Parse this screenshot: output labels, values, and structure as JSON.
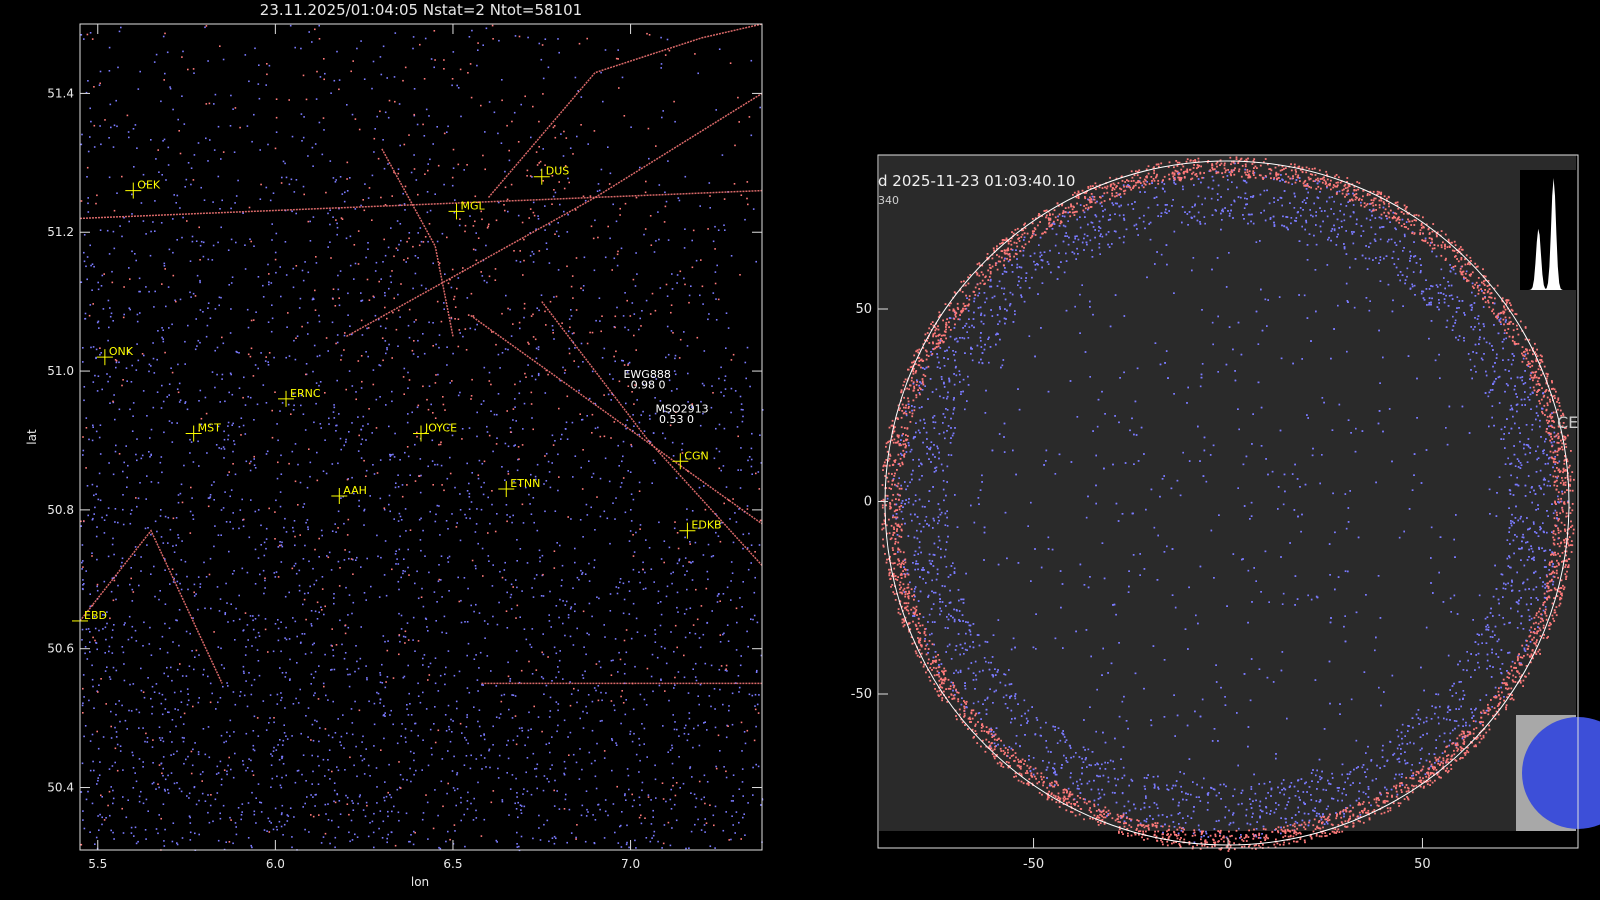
{
  "chart_data": [
    {
      "type": "scatter",
      "title": "23.11.2025/01:04:05 Nstat=2 Ntot=58101",
      "xlabel": "lon",
      "ylabel": "lat",
      "xlim": [
        5.45,
        7.37
      ],
      "ylim": [
        50.31,
        51.5
      ],
      "xticks": [
        "5.5",
        "6.0",
        "6.5",
        "7.0"
      ],
      "yticks": [
        "50.4",
        "50.6",
        "50.8",
        "51.0",
        "51.2",
        "51.4"
      ],
      "series": [
        {
          "color": "#7b7bff",
          "density": "dense in south-west, sparse in north"
        },
        {
          "color": "#ff7a7a",
          "density": "concentrated along roads and city outlines"
        }
      ],
      "stations": [
        {
          "label": "OEK",
          "lon": 5.6,
          "lat": 51.26
        },
        {
          "label": "DUS",
          "lon": 6.75,
          "lat": 51.28
        },
        {
          "label": "MGL",
          "lon": 6.51,
          "lat": 51.23
        },
        {
          "label": "ONK",
          "lon": 5.52,
          "lat": 51.02
        },
        {
          "label": "ERNC",
          "lon": 6.03,
          "lat": 50.96
        },
        {
          "label": "MST",
          "lon": 5.77,
          "lat": 50.91
        },
        {
          "label": "JOYCE",
          "lon": 6.41,
          "lat": 50.91
        },
        {
          "label": "CGN",
          "lon": 7.14,
          "lat": 50.87
        },
        {
          "label": "AAH",
          "lon": 6.18,
          "lat": 50.82
        },
        {
          "label": "ETNN",
          "lon": 6.65,
          "lat": 50.83
        },
        {
          "label": "EDKB",
          "lon": 7.16,
          "lat": 50.77
        },
        {
          "label": "EBD",
          "lon": 5.45,
          "lat": 50.64
        }
      ],
      "annotations": [
        {
          "text": "EWG888",
          "lon": 6.98,
          "lat": 50.99
        },
        {
          "text": "0.98 0",
          "lon": 7.0,
          "lat": 50.975
        },
        {
          "text": "MSO2913",
          "lon": 7.07,
          "lat": 50.94
        },
        {
          "text": "0.53 0",
          "lon": 7.08,
          "lat": 50.925
        }
      ],
      "routes": [
        {
          "lon": [
            5.45,
            5.65,
            5.85
          ],
          "lat": [
            50.64,
            50.77,
            50.55
          ]
        },
        {
          "lon": [
            6.6,
            6.9,
            7.2,
            7.37
          ],
          "lat": [
            51.25,
            51.43,
            51.48,
            51.5
          ]
        },
        {
          "lon": [
            6.75,
            7.05,
            7.37
          ],
          "lat": [
            51.1,
            50.9,
            50.72
          ]
        },
        {
          "lon": [
            6.55,
            7.15,
            7.37
          ],
          "lat": [
            51.08,
            50.86,
            50.78
          ]
        },
        {
          "lon": [
            5.45,
            7.37
          ],
          "lat": [
            51.22,
            51.26
          ]
        },
        {
          "lon": [
            6.58,
            7.37
          ],
          "lat": [
            50.55,
            50.55
          ]
        },
        {
          "lon": [
            6.3,
            6.45,
            6.5
          ],
          "lat": [
            51.32,
            51.18,
            51.05
          ]
        },
        {
          "lon": [
            6.2,
            6.9,
            7.37
          ],
          "lat": [
            51.05,
            51.25,
            51.4
          ]
        }
      ]
    },
    {
      "type": "scatter",
      "title": "d  2025-11-23 01:03:40.10",
      "subtitle": "340",
      "xlim": [
        -90,
        90
      ],
      "ylim": [
        -90,
        90
      ],
      "xticks": [
        "-50",
        "0",
        "50"
      ],
      "yticks": [
        "50",
        "0",
        "-50"
      ],
      "circle_radius": 89,
      "series": [
        {
          "color": "#7b7bff",
          "distribution": "ring near horizon, sparse in center"
        },
        {
          "color": "#ff7a7a",
          "distribution": "dense band at the outer edge"
        }
      ],
      "edge_text": "CE",
      "inset_histogram": {
        "peaks": [
          {
            "x": 0.33,
            "height": 0.55
          },
          {
            "x": 0.6,
            "height": 1.0
          }
        ]
      }
    }
  ]
}
